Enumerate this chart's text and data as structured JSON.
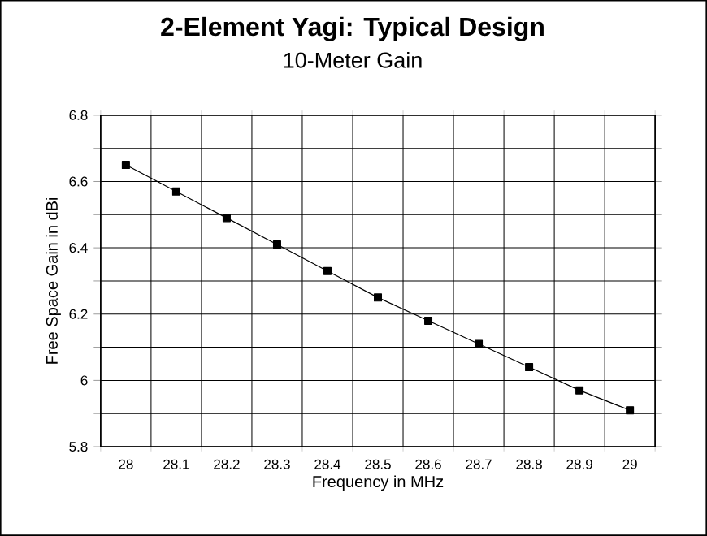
{
  "chart_data": {
    "type": "line",
    "title": "2-Element Yagi: Typical Design",
    "subtitle": "10-Meter Gain",
    "xlabel": "Frequency in MHz",
    "ylabel": "Free Space Gain in dBi",
    "categories": [
      "28",
      "28.1",
      "28.2",
      "28.3",
      "28.4",
      "28.5",
      "28.6",
      "28.7",
      "28.8",
      "28.9",
      "29"
    ],
    "series": [
      {
        "color": "#000000",
        "values": [
          6.65,
          6.57,
          6.49,
          6.41,
          6.33,
          6.25,
          6.18,
          6.11,
          6.04,
          5.97,
          5.91
        ]
      }
    ],
    "ylim": [
      5.8,
      6.8
    ],
    "yticks": [
      5.8,
      {
        "value": 5.9,
        "label": null
      },
      6,
      {
        "value": 6.1,
        "label": null
      },
      6.2,
      {
        "value": 6.3,
        "label": null
      },
      6.4,
      {
        "value": 6.5,
        "label": null
      },
      6.6,
      {
        "value": 6.7,
        "label": null
      },
      6.8
    ],
    "grid": true,
    "marker": "square",
    "line_style": "solid"
  }
}
